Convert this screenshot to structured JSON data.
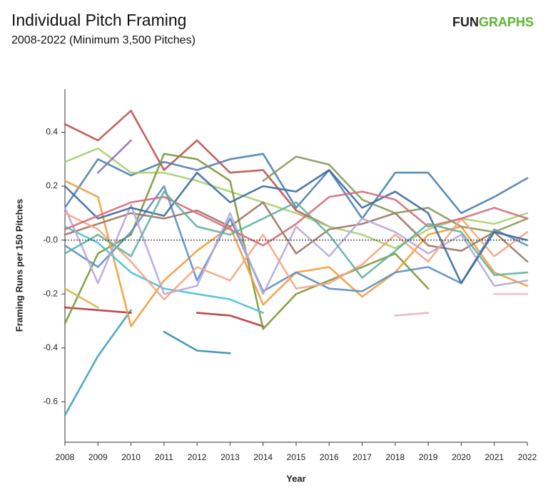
{
  "chart_data": {
    "type": "line",
    "title": "Individual Pitch Framing",
    "subtitle": "2008-2022 (Minimum 3,500 Pitches)",
    "logo": [
      "FUN",
      "GRAPHS"
    ],
    "x_label": "Year",
    "y_label": "Framing Runs per 150 Pitches",
    "x": [
      2008,
      2009,
      2010,
      2011,
      2012,
      2013,
      2014,
      2015,
      2016,
      2017,
      2018,
      2019,
      2020,
      2021,
      2022
    ],
    "xlim": [
      2008,
      2022
    ],
    "xticks": [
      2008,
      2009,
      2010,
      2011,
      2012,
      2013,
      2014,
      2015,
      2016,
      2017,
      2018,
      2019,
      2020,
      2021,
      2022
    ],
    "ylim": [
      -0.75,
      0.56
    ],
    "yticks": [
      -0.6,
      -0.4,
      -0.2,
      {
        "value": 0,
        "label": "-0.0"
      },
      0.2,
      0.4
    ],
    "zero_line": true,
    "series": [
      {
        "color": "#3aa3b8",
        "values": [
          -0.65,
          -0.43,
          -0.26,
          null,
          null,
          null,
          null,
          null,
          null,
          null,
          null,
          null,
          null,
          null,
          null
        ]
      },
      {
        "color": "#2f8fa8",
        "values": [
          null,
          null,
          null,
          -0.34,
          -0.41,
          -0.42,
          null,
          null,
          null,
          null,
          null,
          null,
          null,
          null,
          null
        ]
      },
      {
        "color": "#c0504d",
        "values": [
          0.43,
          0.37,
          0.48,
          0.26,
          0.37,
          0.25,
          0.26,
          0.11,
          0.05,
          null,
          null,
          null,
          null,
          null,
          null
        ]
      },
      {
        "color": "#4a7fb5",
        "values": [
          0.12,
          0.3,
          0.24,
          0.29,
          0.26,
          0.3,
          0.32,
          0.12,
          0.26,
          0.08,
          0.25,
          0.25,
          0.1,
          0.16,
          0.23
        ]
      },
      {
        "color": "#a9d06f",
        "values": [
          0.29,
          0.34,
          0.25,
          0.25,
          0.22,
          0.18,
          0.14,
          0.1,
          0.05,
          0.02,
          -0.03,
          0.04,
          0.08,
          0.06,
          0.1
        ]
      },
      {
        "color": "#8f6fba",
        "values": [
          null,
          0.25,
          0.37,
          null,
          null,
          null,
          null,
          null,
          null,
          null,
          null,
          null,
          null,
          null,
          null
        ]
      },
      {
        "color": "#e8b4b8",
        "values": [
          null,
          null,
          null,
          null,
          null,
          null,
          null,
          null,
          null,
          null,
          -0.28,
          -0.27,
          null,
          null,
          null
        ]
      },
      {
        "color": "#f2b8c6",
        "values": [
          null,
          null,
          null,
          null,
          null,
          null,
          null,
          null,
          null,
          null,
          null,
          null,
          null,
          -0.2,
          -0.2
        ]
      },
      {
        "color": "#b5393a",
        "values": [
          -0.25,
          -0.26,
          -0.27,
          null,
          -0.27,
          -0.28,
          -0.32,
          null,
          null,
          null,
          null,
          null,
          null,
          null,
          null
        ]
      },
      {
        "color": "#7a9a3a",
        "values": [
          -0.31,
          -0.05,
          0.02,
          0.32,
          0.3,
          0.22,
          -0.33,
          -0.2,
          -0.15,
          -0.1,
          -0.05,
          -0.18,
          null,
          null,
          null
        ]
      },
      {
        "color": "#f39c3a",
        "values": [
          0.22,
          0.16,
          -0.32,
          -0.15,
          -0.04,
          0.05,
          -0.24,
          -0.12,
          -0.1,
          -0.21,
          -0.12,
          0.02,
          0.05,
          -0.12,
          -0.17
        ]
      },
      {
        "color": "#5b8fc7",
        "values": [
          -0.02,
          -0.1,
          0.03,
          0.2,
          -0.15,
          0.08,
          -0.19,
          -0.12,
          -0.18,
          -0.19,
          -0.12,
          -0.1,
          -0.16,
          0.04,
          -0.02
        ]
      },
      {
        "color": "#8a9a5b",
        "values": [
          null,
          null,
          null,
          null,
          null,
          null,
          0.22,
          0.31,
          0.28,
          0.15,
          0.1,
          0.12,
          0.05,
          0.03,
          0.08
        ]
      },
      {
        "color": "#4bc0d9",
        "values": [
          0.05,
          -0.01,
          -0.12,
          -0.18,
          -0.2,
          -0.22,
          -0.27,
          null,
          null,
          null,
          null,
          null,
          null,
          null,
          null
        ]
      },
      {
        "color": "#9c755f",
        "values": [
          0.02,
          0.06,
          0.1,
          0.08,
          0.11,
          0.05,
          0.14,
          -0.05,
          0.04,
          0.06,
          0.1,
          -0.02,
          -0.04,
          0.03,
          -0.08
        ]
      },
      {
        "color": "#d9b44a",
        "values": [
          -0.18,
          -0.25,
          null,
          null,
          null,
          null,
          null,
          null,
          null,
          null,
          null,
          null,
          null,
          null,
          null
        ]
      },
      {
        "color": "#b8a7d9",
        "values": [
          0.12,
          -0.16,
          0.13,
          -0.2,
          -0.17,
          0.1,
          -0.2,
          0.05,
          -0.06,
          0.08,
          0.03,
          -0.05,
          0.02,
          -0.17,
          -0.15
        ]
      },
      {
        "color": "#f4a582",
        "values": [
          0.1,
          0.04,
          -0.08,
          -0.22,
          -0.1,
          -0.15,
          0.02,
          -0.18,
          -0.16,
          -0.09,
          0.02,
          -0.08,
          0.08,
          -0.06,
          0.03
        ]
      },
      {
        "color": "#3d6aa0",
        "values": [
          0.2,
          0.08,
          0.12,
          0.09,
          0.25,
          0.14,
          0.2,
          0.18,
          0.26,
          0.12,
          0.18,
          0.1,
          -0.16,
          0.03,
          0.0
        ]
      },
      {
        "color": "#d66b7a",
        "values": [
          0.04,
          0.09,
          0.14,
          0.16,
          0.1,
          0.04,
          -0.02,
          0.06,
          0.16,
          0.18,
          0.15,
          0.05,
          0.08,
          0.12,
          0.08
        ]
      },
      {
        "color": "#5fb3a1",
        "values": [
          -0.05,
          0.02,
          -0.06,
          0.18,
          0.05,
          0.02,
          0.08,
          0.14,
          0.02,
          -0.14,
          -0.04,
          0.06,
          0.03,
          -0.13,
          -0.12
        ]
      }
    ]
  }
}
